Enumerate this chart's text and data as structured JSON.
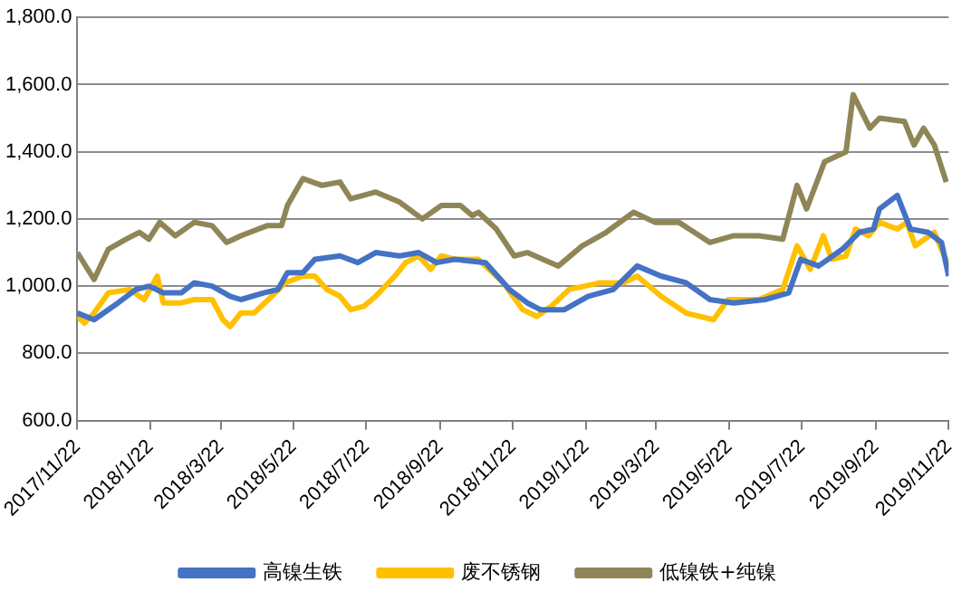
{
  "chart_data": {
    "type": "line",
    "legend": "bottom",
    "grid": "y",
    "marker": "none",
    "line_style": "solid",
    "xlim": [
      "2017-11-22",
      "2019-11-22"
    ],
    "xticks": [
      {
        "value": "2017-11-22",
        "label": "2017/11/22"
      },
      {
        "value": "2018-01-22",
        "label": "2018/1/22"
      },
      {
        "value": "2018-03-22",
        "label": "2018/3/22"
      },
      {
        "value": "2018-05-22",
        "label": "2018/5/22"
      },
      {
        "value": "2018-07-22",
        "label": "2018/7/22"
      },
      {
        "value": "2018-09-22",
        "label": "2018/9/22"
      },
      {
        "value": "2018-11-22",
        "label": "2018/11/22"
      },
      {
        "value": "2019-01-22",
        "label": "2019/1/22"
      },
      {
        "value": "2019-03-22",
        "label": "2019/3/22"
      },
      {
        "value": "2019-05-22",
        "label": "2019/5/22"
      },
      {
        "value": "2019-07-22",
        "label": "2019/7/22"
      },
      {
        "value": "2019-09-22",
        "label": "2019/9/22"
      },
      {
        "value": "2019-11-22",
        "label": "2019/11/22"
      }
    ],
    "ylim": [
      600,
      1800
    ],
    "yticks": [
      {
        "value": 600,
        "label": "600.0"
      },
      {
        "value": 800,
        "label": "800.0"
      },
      {
        "value": 1000,
        "label": "1,000.0"
      },
      {
        "value": 1200,
        "label": "1,200.0"
      },
      {
        "value": 1400,
        "label": "1,400.0"
      },
      {
        "value": 1600,
        "label": "1,600.0"
      },
      {
        "value": 1800,
        "label": "1,800.0"
      }
    ],
    "series": [
      {
        "name": "高镍生铁",
        "color": "#4472c4",
        "x": [
          "2017-11-22",
          "2017-12-06",
          "2017-12-26",
          "2018-01-10",
          "2018-01-21",
          "2018-02-02",
          "2018-02-17",
          "2018-02-28",
          "2018-03-15",
          "2018-03-30",
          "2018-04-08",
          "2018-04-27",
          "2018-05-09",
          "2018-05-17",
          "2018-05-30",
          "2018-06-09",
          "2018-06-30",
          "2018-07-15",
          "2018-07-30",
          "2018-08-19",
          "2018-09-04",
          "2018-09-19",
          "2018-10-04",
          "2018-10-30",
          "2018-11-19",
          "2018-12-04",
          "2018-12-15",
          "2019-01-04",
          "2019-01-24",
          "2019-02-14",
          "2019-03-06",
          "2019-03-26",
          "2019-04-16",
          "2019-05-06",
          "2019-05-26",
          "2019-06-21",
          "2019-07-11",
          "2019-07-21",
          "2019-08-05",
          "2019-08-25",
          "2019-09-08",
          "2019-09-20",
          "2019-09-25",
          "2019-10-10",
          "2019-10-21",
          "2019-11-05",
          "2019-11-16",
          "2019-11-22"
        ],
        "values": [
          920,
          900,
          950,
          990,
          1000,
          980,
          980,
          1010,
          1000,
          970,
          960,
          980,
          990,
          1040,
          1040,
          1080,
          1090,
          1070,
          1100,
          1090,
          1100,
          1070,
          1080,
          1070,
          990,
          950,
          930,
          930,
          970,
          990,
          1060,
          1030,
          1010,
          960,
          950,
          960,
          980,
          1080,
          1060,
          1110,
          1160,
          1170,
          1230,
          1270,
          1170,
          1160,
          1130,
          1030
        ]
      },
      {
        "name": "废不锈钢",
        "color": "#ffc000",
        "x": [
          "2017-11-22",
          "2017-11-28",
          "2017-12-06",
          "2017-12-18",
          "2018-01-05",
          "2018-01-17",
          "2018-01-28",
          "2018-02-02",
          "2018-02-17",
          "2018-02-28",
          "2018-03-15",
          "2018-03-24",
          "2018-03-30",
          "2018-04-08",
          "2018-04-19",
          "2018-05-04",
          "2018-05-15",
          "2018-05-30",
          "2018-06-09",
          "2018-06-19",
          "2018-06-30",
          "2018-07-09",
          "2018-07-20",
          "2018-07-30",
          "2018-08-15",
          "2018-08-24",
          "2018-09-04",
          "2018-09-14",
          "2018-09-23",
          "2018-10-04",
          "2018-10-24",
          "2018-11-14",
          "2018-11-30",
          "2018-12-12",
          "2018-12-24",
          "2019-01-08",
          "2019-02-03",
          "2019-02-23",
          "2019-03-06",
          "2019-03-26",
          "2019-04-16",
          "2019-05-09",
          "2019-05-21",
          "2019-06-16",
          "2019-07-06",
          "2019-07-18",
          "2019-07-29",
          "2019-08-09",
          "2019-08-16",
          "2019-08-28",
          "2019-09-05",
          "2019-09-16",
          "2019-09-25",
          "2019-10-10",
          "2019-10-18",
          "2019-10-25",
          "2019-11-10",
          "2019-11-22"
        ],
        "values": [
          910,
          890,
          920,
          980,
          990,
          960,
          1030,
          950,
          950,
          960,
          960,
          900,
          880,
          920,
          920,
          970,
          1010,
          1030,
          1030,
          990,
          970,
          930,
          940,
          970,
          1030,
          1070,
          1090,
          1050,
          1090,
          1080,
          1080,
          1010,
          930,
          910,
          940,
          990,
          1010,
          1010,
          1030,
          970,
          920,
          900,
          960,
          960,
          990,
          1120,
          1050,
          1150,
          1080,
          1090,
          1170,
          1150,
          1190,
          1170,
          1190,
          1120,
          1160,
          1060
        ]
      },
      {
        "name": "低镍铁+纯镍",
        "color": "#8f8657",
        "x": [
          "2017-11-22",
          "2017-12-06",
          "2017-12-18",
          "2018-01-02",
          "2018-01-13",
          "2018-01-21",
          "2018-01-30",
          "2018-02-12",
          "2018-02-28",
          "2018-03-15",
          "2018-03-27",
          "2018-04-08",
          "2018-04-30",
          "2018-05-12",
          "2018-05-17",
          "2018-05-30",
          "2018-06-15",
          "2018-06-30",
          "2018-07-09",
          "2018-07-30",
          "2018-08-19",
          "2018-09-07",
          "2018-09-23",
          "2018-10-09",
          "2018-10-19",
          "2018-10-24",
          "2018-11-08",
          "2018-11-23",
          "2018-12-04",
          "2018-12-30",
          "2019-01-19",
          "2019-02-08",
          "2019-03-03",
          "2019-03-21",
          "2019-04-10",
          "2019-05-06",
          "2019-05-26",
          "2019-06-16",
          "2019-07-06",
          "2019-07-18",
          "2019-07-26",
          "2019-08-10",
          "2019-08-28",
          "2019-09-03",
          "2019-09-10",
          "2019-09-17",
          "2019-09-25",
          "2019-10-16",
          "2019-10-24",
          "2019-11-01",
          "2019-11-10",
          "2019-11-20"
        ],
        "values": [
          1100,
          1020,
          1110,
          1140,
          1160,
          1140,
          1190,
          1150,
          1190,
          1180,
          1130,
          1150,
          1180,
          1180,
          1240,
          1320,
          1300,
          1310,
          1260,
          1280,
          1250,
          1200,
          1240,
          1240,
          1210,
          1220,
          1170,
          1090,
          1100,
          1060,
          1120,
          1160,
          1220,
          1190,
          1190,
          1130,
          1150,
          1150,
          1140,
          1300,
          1230,
          1370,
          1400,
          1570,
          1520,
          1470,
          1500,
          1490,
          1420,
          1470,
          1420,
          1310
        ]
      }
    ]
  }
}
